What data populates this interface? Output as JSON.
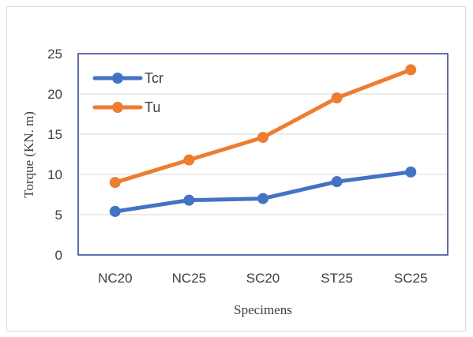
{
  "chart_data": {
    "type": "line",
    "title": "",
    "xlabel": "Specimens",
    "ylabel": "Torque (KN. m)",
    "categories": [
      "NC20",
      "NC25",
      "SC20",
      "ST25",
      "SC25"
    ],
    "ylim": [
      0,
      25
    ],
    "yticks": [
      0,
      5,
      10,
      15,
      20,
      25
    ],
    "grid": true,
    "legend_position": "top-left",
    "series": [
      {
        "name": "Tcr",
        "color": "#4472c4",
        "values": [
          5.4,
          6.8,
          7.0,
          9.1,
          10.3
        ]
      },
      {
        "name": "Tu",
        "color": "#ed7d31",
        "values": [
          9.0,
          11.8,
          14.6,
          19.5,
          23.0
        ]
      }
    ]
  }
}
